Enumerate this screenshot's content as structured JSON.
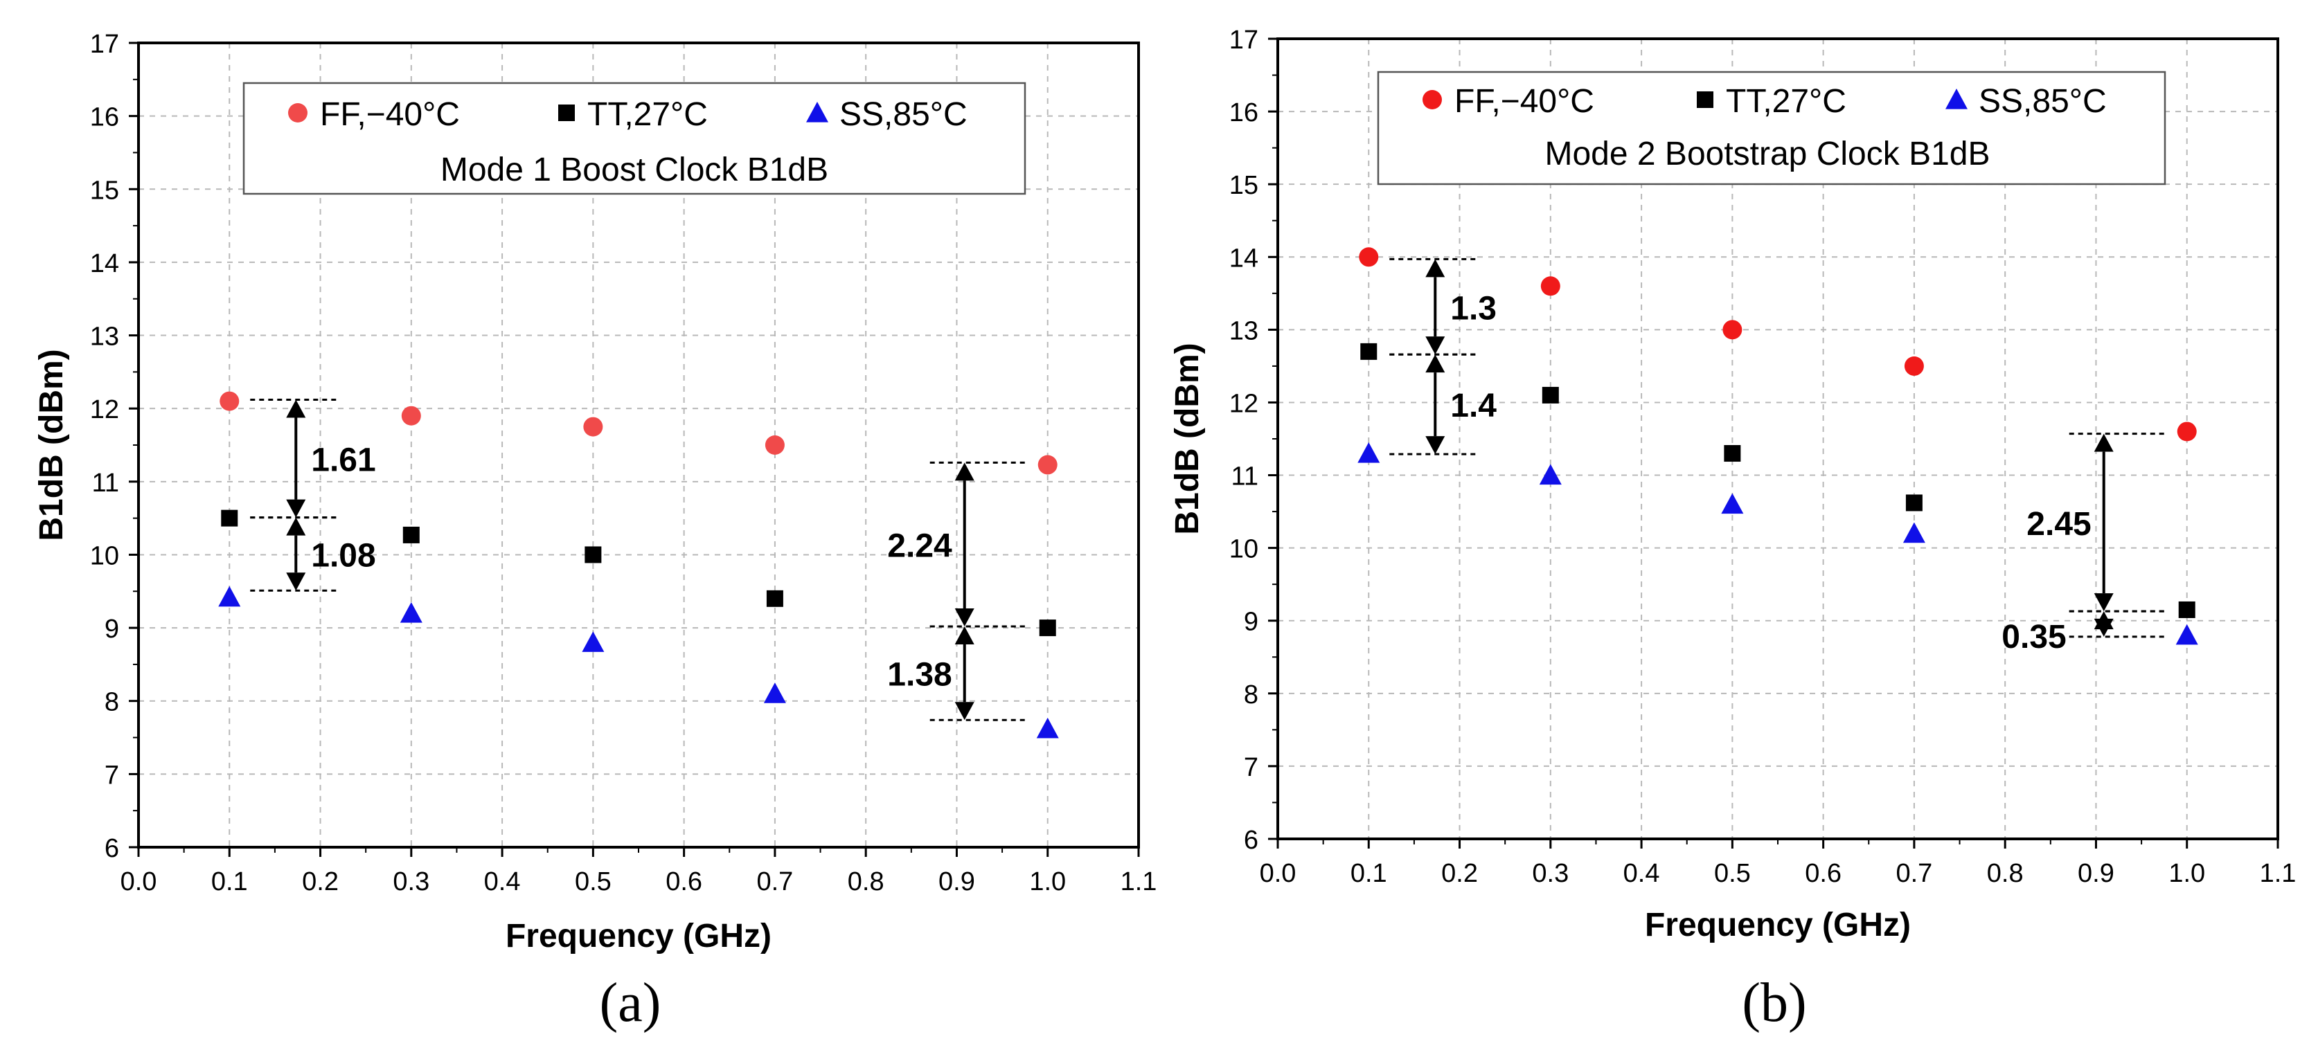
{
  "chart_data": [
    {
      "type": "scatter",
      "panel_label": "(a)",
      "title": "Mode 1 Boost Clock B1dB",
      "xlabel": "Frequency (GHz)",
      "ylabel": "B1dB (dBm)",
      "xlim": [
        0.0,
        1.1
      ],
      "ylim": [
        6,
        17
      ],
      "xticks": [
        "0.0",
        "0.1",
        "0.2",
        "0.3",
        "0.4",
        "0.5",
        "0.6",
        "0.7",
        "0.8",
        "0.9",
        "1.0",
        "1.1"
      ],
      "yticks": [
        "6",
        "7",
        "8",
        "9",
        "10",
        "11",
        "12",
        "13",
        "14",
        "15",
        "16",
        "17"
      ],
      "grid": true,
      "legend_position": "top",
      "x": [
        0.1,
        0.3,
        0.5,
        0.7,
        1.0
      ],
      "series": [
        {
          "name": "FF,−40°C",
          "marker": "circle",
          "color": "#f04a4a",
          "values": [
            12.1,
            11.9,
            11.75,
            11.5,
            11.23
          ]
        },
        {
          "name": "TT,27°C",
          "marker": "square",
          "color": "#000000",
          "values": [
            10.5,
            10.27,
            10.0,
            9.4,
            9.0
          ]
        },
        {
          "name": "SS,85°C",
          "marker": "triangle",
          "color": "#1010e8",
          "values": [
            9.42,
            9.2,
            8.8,
            8.1,
            7.62
          ]
        }
      ],
      "annotations": [
        {
          "label": "1.61",
          "x": 0.1,
          "from": 10.51,
          "to": 12.12
        },
        {
          "label": "1.08",
          "x": 0.1,
          "from": 9.51,
          "to": 10.51
        },
        {
          "label": "2.24",
          "x": 1.0,
          "from": 9.02,
          "to": 11.26
        },
        {
          "label": "1.38",
          "x": 1.0,
          "from": 7.74,
          "to": 9.02
        }
      ]
    },
    {
      "type": "scatter",
      "panel_label": "(b)",
      "title": "Mode 2 Bootstrap Clock B1dB",
      "xlabel": "Frequency (GHz)",
      "ylabel": "B1dB (dBm)",
      "xlim": [
        0.0,
        1.1
      ],
      "ylim": [
        6,
        17
      ],
      "xticks": [
        "0.0",
        "0.1",
        "0.2",
        "0.3",
        "0.4",
        "0.5",
        "0.6",
        "0.7",
        "0.8",
        "0.9",
        "1.0",
        "1.1"
      ],
      "yticks": [
        "6",
        "7",
        "8",
        "9",
        "10",
        "11",
        "12",
        "13",
        "14",
        "15",
        "16",
        "17"
      ],
      "grid": true,
      "legend_position": "top",
      "x": [
        0.1,
        0.3,
        0.5,
        0.7,
        1.0
      ],
      "series": [
        {
          "name": "FF,−40°C",
          "marker": "circle",
          "color": "#f01a1a",
          "values": [
            14.0,
            13.6,
            13.0,
            12.5,
            11.6
          ]
        },
        {
          "name": "TT,27°C",
          "marker": "square",
          "color": "#000000",
          "values": [
            12.7,
            12.1,
            11.3,
            10.62,
            9.15
          ]
        },
        {
          "name": "SS,85°C",
          "marker": "triangle",
          "color": "#1010e8",
          "values": [
            11.3,
            11.0,
            10.6,
            10.2,
            8.8
          ]
        }
      ],
      "annotations": [
        {
          "label": "1.3",
          "x": 0.1,
          "from": 12.66,
          "to": 13.97
        },
        {
          "label": "1.4",
          "x": 0.1,
          "from": 11.29,
          "to": 12.66
        },
        {
          "label": "2.45",
          "x": 1.0,
          "from": 9.13,
          "to": 11.57
        },
        {
          "label": "0.35",
          "x": 1.0,
          "from": 8.78,
          "to": 9.13
        }
      ]
    }
  ]
}
